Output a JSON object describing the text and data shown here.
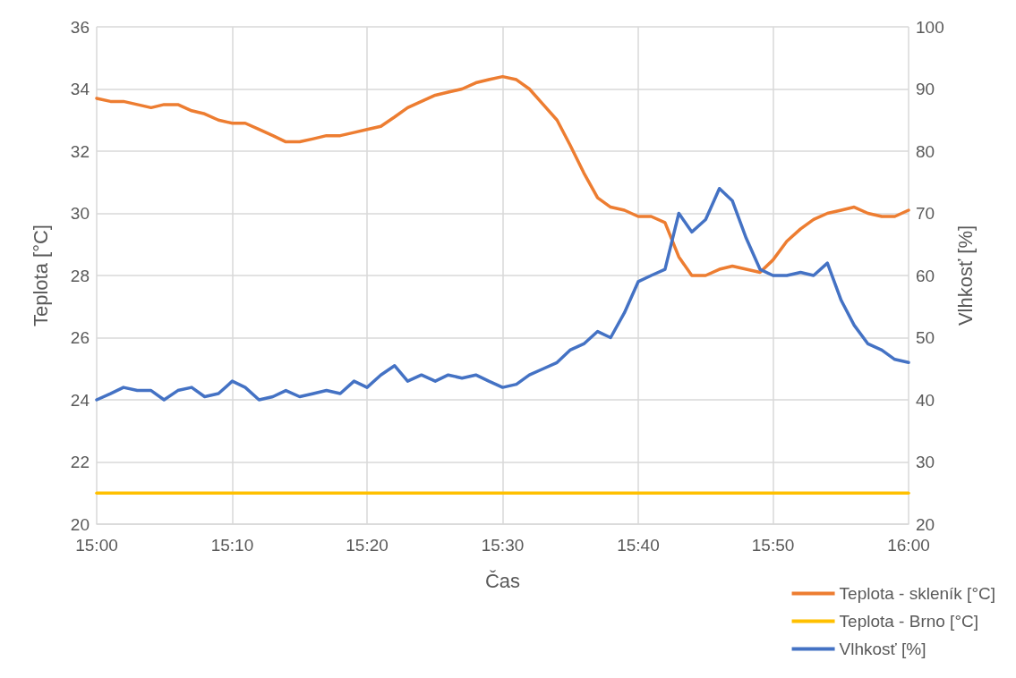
{
  "chart_data": {
    "type": "line",
    "xlabel": "Čas",
    "ylabel": "Teplota [°C]",
    "y2label": "Vlhkosť [%]",
    "x": [
      15,
      15.017,
      15.033,
      15.05,
      15.067,
      15.083,
      15.1,
      15.117,
      15.133,
      15.15,
      15.167,
      15.183,
      15.2,
      15.217,
      15.233,
      15.25,
      15.267,
      15.283,
      15.3,
      15.317,
      15.333,
      15.35,
      15.367,
      15.383,
      15.4,
      15.417,
      15.433,
      15.45,
      15.467,
      15.483,
      15.5,
      15.517,
      15.533,
      15.55,
      15.567,
      15.583,
      15.6,
      15.617,
      15.633,
      15.65,
      15.667,
      15.683,
      15.7,
      15.717,
      15.733,
      15.75,
      15.767,
      15.783,
      15.8,
      15.817,
      15.833,
      15.85,
      15.867,
      15.883,
      15.9,
      15.917,
      15.933,
      15.95,
      15.967,
      15.983,
      16
    ],
    "series": [
      {
        "name": "Teplota - skleník [°C]",
        "color": "#ed7d31",
        "values": [
          33.7,
          33.6,
          33.6,
          33.5,
          33.4,
          33.5,
          33.5,
          33.3,
          33.2,
          33.0,
          32.9,
          32.9,
          32.7,
          32.5,
          32.3,
          32.3,
          32.4,
          32.5,
          32.5,
          32.6,
          32.7,
          32.8,
          33.1,
          33.4,
          33.6,
          33.8,
          33.9,
          34.0,
          34.2,
          34.3,
          34.4,
          34.3,
          34.0,
          33.5,
          33.0,
          32.2,
          31.3,
          30.5,
          30.2,
          30.1,
          29.9,
          29.9,
          29.7,
          28.6,
          28.0,
          28.0,
          28.2,
          28.3,
          28.2,
          28.1,
          28.5,
          29.1,
          29.5,
          29.8,
          30.0,
          30.1,
          30.2,
          30.0,
          29.9,
          29.9,
          30.1
        ]
      },
      {
        "name": "Teplota - Brno [°C]",
        "color": "#ffc000",
        "x": [
          15,
          16
        ],
        "values": [
          21,
          21
        ]
      },
      {
        "name": "Vlhkosť [%]",
        "color": "#4472c4",
        "axis": "y2",
        "values": [
          40,
          41,
          42,
          41.5,
          41.5,
          40,
          41.5,
          42,
          40.5,
          41,
          43,
          42,
          40,
          40.5,
          41.5,
          40.5,
          41,
          41.5,
          41,
          43,
          42,
          44,
          45.5,
          43,
          44,
          43,
          44,
          43.5,
          44,
          43,
          42,
          42.5,
          44,
          45,
          46,
          48,
          49,
          51,
          50,
          54,
          59,
          60,
          61,
          70,
          67,
          69,
          74,
          72,
          66,
          61,
          60,
          60,
          60.5,
          60,
          62,
          56,
          52,
          49,
          48,
          46.5,
          46
        ]
      }
    ],
    "xlim": [
      15,
      16
    ],
    "xticks": [
      {
        "value": 15,
        "label": "15:00"
      },
      {
        "value": 15.167,
        "label": "15:10"
      },
      {
        "value": 15.333,
        "label": "15:20"
      },
      {
        "value": 15.5,
        "label": "15:30"
      },
      {
        "value": 15.667,
        "label": "15:40"
      },
      {
        "value": 15.833,
        "label": "15:50"
      },
      {
        "value": 16,
        "label": "16:00"
      }
    ],
    "ylim": [
      20,
      36
    ],
    "yticks": [
      20,
      22,
      24,
      26,
      28,
      30,
      32,
      34,
      36
    ],
    "y2lim": [
      20,
      100
    ],
    "y2ticks": [
      20,
      30,
      40,
      50,
      60,
      70,
      80,
      90,
      100
    ],
    "grid": true,
    "legend": "bottom right",
    "marker": "none",
    "line_style": "solid"
  }
}
